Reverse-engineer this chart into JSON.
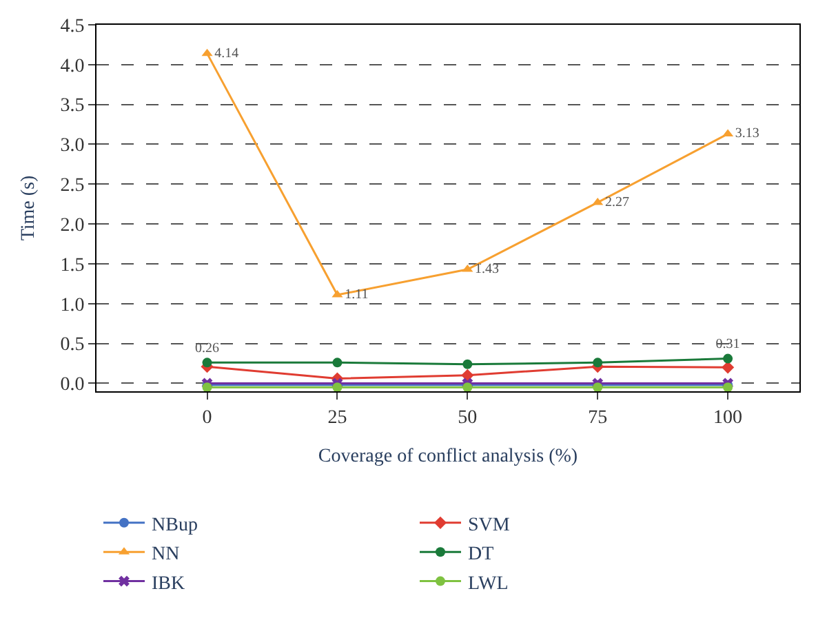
{
  "chart_data": {
    "type": "line",
    "xlabel": "Coverage of conflict analysis (%)",
    "ylabel": "Time (s)",
    "categories": [
      "0",
      "25",
      "50",
      "75",
      "100"
    ],
    "series": [
      {
        "name": "NBup",
        "color": "#4472c4",
        "marker": "circle",
        "values": [
          -0.02,
          -0.02,
          -0.02,
          -0.02,
          -0.02
        ]
      },
      {
        "name": "SVM",
        "color": "#e03c31",
        "marker": "diamond",
        "values": [
          0.21,
          0.06,
          0.1,
          0.21,
          0.2
        ]
      },
      {
        "name": "NN",
        "color": "#f7a030",
        "marker": "triangle",
        "values": [
          4.14,
          1.11,
          1.43,
          2.27,
          3.13
        ],
        "value_labels": [
          "4.14",
          "1.11",
          "1.43",
          "2.27",
          "3.13"
        ]
      },
      {
        "name": "DT",
        "color": "#1a7a3a",
        "marker": "circle",
        "values": [
          0.26,
          0.26,
          0.24,
          0.26,
          0.31
        ],
        "value_labels": [
          "0.26",
          null,
          null,
          null,
          "0.31"
        ]
      },
      {
        "name": "IBK",
        "color": "#7030a0",
        "marker": "cross",
        "values": [
          0,
          0,
          0,
          0,
          0
        ]
      },
      {
        "name": "LWL",
        "color": "#7fc241",
        "marker": "circle",
        "values": [
          -0.05,
          -0.05,
          -0.05,
          -0.05,
          -0.05
        ]
      }
    ],
    "ylim": [
      -0.1,
      4.5
    ],
    "yticks": [
      {
        "value": 0,
        "label": "0.0"
      },
      0.5,
      {
        "value": 1,
        "label": "1.0"
      },
      1.5,
      {
        "value": 2,
        "label": "2.0"
      },
      2.5,
      {
        "value": 3,
        "label": "3.0"
      },
      3.5,
      {
        "value": 4,
        "label": "4.0"
      },
      4.5
    ],
    "grid": "y",
    "legend": "bottom",
    "line_style": "solid"
  }
}
